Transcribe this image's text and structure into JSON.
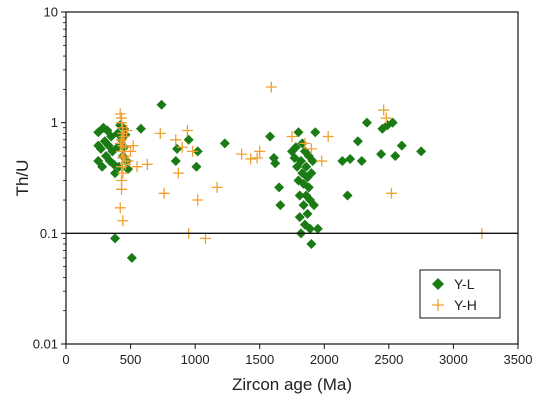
{
  "chart_data": {
    "type": "scatter",
    "title": "",
    "xlabel": "Zircon age (Ma)",
    "ylabel": "Th/U",
    "xlim": [
      0,
      3500
    ],
    "ylim": [
      0.01,
      10
    ],
    "y_scale": "log",
    "x_ticks": [
      0,
      500,
      1000,
      1500,
      2000,
      2500,
      3000,
      3500
    ],
    "y_ticks": [
      {
        "value": 0.01,
        "label": "0.01"
      },
      {
        "value": 0.1,
        "label": "0.1"
      },
      {
        "value": 1,
        "label": "1"
      },
      {
        "value": 10,
        "label": "10"
      }
    ],
    "reference_line": {
      "y": 0.1
    },
    "grid": false,
    "legend_position": "bottom-right",
    "series": [
      {
        "name": "Y-L",
        "marker": "diamond",
        "color": "#1a7a14",
        "points": [
          [
            250,
            0.82
          ],
          [
            250,
            0.62
          ],
          [
            250,
            0.45
          ],
          [
            270,
            0.58
          ],
          [
            280,
            0.4
          ],
          [
            290,
            0.9
          ],
          [
            300,
            0.68
          ],
          [
            310,
            0.5
          ],
          [
            320,
            0.85
          ],
          [
            330,
            0.62
          ],
          [
            340,
            0.45
          ],
          [
            350,
            0.75
          ],
          [
            360,
            0.55
          ],
          [
            370,
            0.42
          ],
          [
            380,
            0.35
          ],
          [
            380,
            0.09
          ],
          [
            400,
            0.8
          ],
          [
            400,
            0.6
          ],
          [
            410,
            0.4
          ],
          [
            420,
            0.95
          ],
          [
            430,
            0.7
          ],
          [
            440,
            0.5
          ],
          [
            450,
            0.88
          ],
          [
            450,
            0.6
          ],
          [
            460,
            0.78
          ],
          [
            470,
            0.45
          ],
          [
            480,
            0.38
          ],
          [
            510,
            0.06
          ],
          [
            580,
            0.88
          ],
          [
            740,
            1.45
          ],
          [
            850,
            0.45
          ],
          [
            860,
            0.58
          ],
          [
            950,
            0.7
          ],
          [
            1010,
            0.4
          ],
          [
            1020,
            0.55
          ],
          [
            1230,
            0.65
          ],
          [
            1580,
            0.75
          ],
          [
            1610,
            0.48
          ],
          [
            1620,
            0.43
          ],
          [
            1650,
            0.26
          ],
          [
            1660,
            0.18
          ],
          [
            1750,
            0.55
          ],
          [
            1770,
            0.48
          ],
          [
            1780,
            0.6
          ],
          [
            1790,
            0.4
          ],
          [
            1800,
            0.82
          ],
          [
            1800,
            0.3
          ],
          [
            1810,
            0.22
          ],
          [
            1810,
            0.14
          ],
          [
            1820,
            0.1
          ],
          [
            1820,
            0.45
          ],
          [
            1830,
            0.65
          ],
          [
            1830,
            0.35
          ],
          [
            1840,
            0.28
          ],
          [
            1840,
            0.18
          ],
          [
            1850,
            0.12
          ],
          [
            1850,
            0.55
          ],
          [
            1860,
            0.4
          ],
          [
            1860,
            0.22
          ],
          [
            1870,
            0.15
          ],
          [
            1870,
            0.32
          ],
          [
            1880,
            0.5
          ],
          [
            1880,
            0.26
          ],
          [
            1890,
            0.11
          ],
          [
            1890,
            0.2
          ],
          [
            1900,
            0.08
          ],
          [
            1900,
            0.35
          ],
          [
            1910,
            0.45
          ],
          [
            1920,
            0.18
          ],
          [
            1930,
            0.82
          ],
          [
            1950,
            0.11
          ],
          [
            2140,
            0.45
          ],
          [
            2180,
            0.22
          ],
          [
            2200,
            0.47
          ],
          [
            2260,
            0.68
          ],
          [
            2290,
            0.45
          ],
          [
            2330,
            1.0
          ],
          [
            2440,
            0.52
          ],
          [
            2450,
            0.88
          ],
          [
            2490,
            0.95
          ],
          [
            2530,
            1.0
          ],
          [
            2550,
            0.5
          ],
          [
            2600,
            0.62
          ],
          [
            2750,
            0.55
          ]
        ]
      },
      {
        "name": "Y-H",
        "marker": "plus",
        "color": "#f0a030",
        "points": [
          [
            420,
            1.2
          ],
          [
            430,
            1.1
          ],
          [
            430,
            1.0
          ],
          [
            440,
            0.9
          ],
          [
            440,
            0.8
          ],
          [
            430,
            0.7
          ],
          [
            440,
            0.62
          ],
          [
            430,
            0.55
          ],
          [
            440,
            0.48
          ],
          [
            430,
            0.4
          ],
          [
            440,
            0.35
          ],
          [
            430,
            0.3
          ],
          [
            430,
            0.25
          ],
          [
            420,
            0.17
          ],
          [
            440,
            0.13
          ],
          [
            420,
            0.65
          ],
          [
            450,
            0.75
          ],
          [
            450,
            0.5
          ],
          [
            460,
            0.6
          ],
          [
            460,
            0.42
          ],
          [
            470,
            0.85
          ],
          [
            480,
            0.45
          ],
          [
            500,
            0.55
          ],
          [
            520,
            0.62
          ],
          [
            550,
            0.4
          ],
          [
            630,
            0.42
          ],
          [
            730,
            0.8
          ],
          [
            760,
            0.23
          ],
          [
            850,
            0.7
          ],
          [
            870,
            0.35
          ],
          [
            900,
            0.6
          ],
          [
            940,
            0.85
          ],
          [
            950,
            0.1
          ],
          [
            980,
            0.55
          ],
          [
            1020,
            0.2
          ],
          [
            1080,
            0.09
          ],
          [
            1170,
            0.26
          ],
          [
            1360,
            0.52
          ],
          [
            1430,
            0.47
          ],
          [
            1480,
            0.48
          ],
          [
            1500,
            0.55
          ],
          [
            1590,
            2.1
          ],
          [
            1750,
            0.75
          ],
          [
            1850,
            0.65
          ],
          [
            1900,
            0.58
          ],
          [
            1980,
            0.45
          ],
          [
            2030,
            0.75
          ],
          [
            2460,
            1.3
          ],
          [
            2480,
            1.1
          ],
          [
            2520,
            0.23
          ],
          [
            3220,
            0.1
          ]
        ]
      }
    ]
  }
}
